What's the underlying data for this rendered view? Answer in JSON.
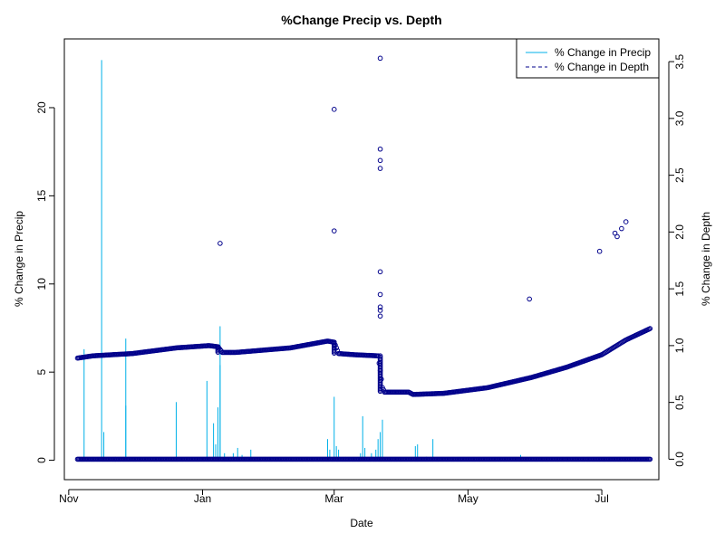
{
  "chart_data": {
    "type": "line",
    "title": "%Change Precip vs. Depth",
    "xlabel": "Date",
    "ylabel_left": "% Change in Precip",
    "ylabel_right": "% Change in Depth",
    "x_ticks": [
      {
        "date": "2019-11-01",
        "label": "Nov"
      },
      {
        "date": "2020-01-01",
        "label": "Jan"
      },
      {
        "date": "2020-03-01",
        "label": "Mar"
      },
      {
        "date": "2020-05-01",
        "label": "May"
      },
      {
        "date": "2020-07-01",
        "label": "Jul"
      }
    ],
    "xlim": [
      "2019-10-30",
      "2020-07-27"
    ],
    "y_left_ticks": [
      "0",
      "5",
      "10",
      "15",
      "20"
    ],
    "y_left_lim": [
      -1.1,
      23.9
    ],
    "y_right_ticks": [
      "0.0",
      "0.5",
      "1.0",
      "1.5",
      "2.0",
      "2.5",
      "3.0",
      "3.5"
    ],
    "y_right_lim": [
      -0.18,
      3.7
    ],
    "legend_position": "top-right",
    "series": [
      {
        "name": "% Change in Precip",
        "style": "vertical lines",
        "color": "#00B0E8",
        "axis": "left",
        "points": [
          {
            "date": "2019-11-08",
            "value": 6.3
          },
          {
            "date": "2019-11-16",
            "value": 22.7
          },
          {
            "date": "2019-11-17",
            "value": 1.6
          },
          {
            "date": "2019-11-27",
            "value": 6.9
          },
          {
            "date": "2019-11-27",
            "value": 3.1
          },
          {
            "date": "2019-12-20",
            "value": 3.3
          },
          {
            "date": "2020-01-03",
            "value": 4.5
          },
          {
            "date": "2020-01-06",
            "value": 2.1
          },
          {
            "date": "2020-01-07",
            "value": 0.9
          },
          {
            "date": "2020-01-08",
            "value": 3.0
          },
          {
            "date": "2020-01-09",
            "value": 7.6
          },
          {
            "date": "2020-01-09",
            "value": 5.4
          },
          {
            "date": "2020-01-11",
            "value": 0.4
          },
          {
            "date": "2020-01-15",
            "value": 0.4
          },
          {
            "date": "2020-01-17",
            "value": 0.7
          },
          {
            "date": "2020-01-19",
            "value": 0.3
          },
          {
            "date": "2020-01-23",
            "value": 0.6
          },
          {
            "date": "2020-02-27",
            "value": 1.2
          },
          {
            "date": "2020-02-28",
            "value": 0.6
          },
          {
            "date": "2020-03-01",
            "value": 3.6
          },
          {
            "date": "2020-03-02",
            "value": 0.8
          },
          {
            "date": "2020-03-03",
            "value": 0.6
          },
          {
            "date": "2020-03-13",
            "value": 0.4
          },
          {
            "date": "2020-03-14",
            "value": 2.5
          },
          {
            "date": "2020-03-15",
            "value": 0.7
          },
          {
            "date": "2020-03-18",
            "value": 0.4
          },
          {
            "date": "2020-03-20",
            "value": 0.6
          },
          {
            "date": "2020-03-21",
            "value": 1.2
          },
          {
            "date": "2020-03-22",
            "value": 1.6
          },
          {
            "date": "2020-03-23",
            "value": 2.3
          },
          {
            "date": "2020-04-07",
            "value": 0.8
          },
          {
            "date": "2020-04-08",
            "value": 0.9
          },
          {
            "date": "2020-04-12",
            "value": 0.2
          },
          {
            "date": "2020-04-15",
            "value": 1.2
          },
          {
            "date": "2020-05-25",
            "value": 0.3
          }
        ]
      },
      {
        "name": "% Change in Depth",
        "style": "open circles",
        "color": "#00008B",
        "axis": "right",
        "baseline_value": 0.0,
        "baseline_range": [
          "2019-11-05",
          "2020-07-23"
        ],
        "trend": [
          {
            "date": "2019-11-05",
            "value": 0.89
          },
          {
            "date": "2019-11-12",
            "value": 0.91
          },
          {
            "date": "2019-11-30",
            "value": 0.93
          },
          {
            "date": "2019-12-20",
            "value": 0.98
          },
          {
            "date": "2020-01-04",
            "value": 1.0
          },
          {
            "date": "2020-01-08",
            "value": 0.99
          },
          {
            "date": "2020-01-10",
            "value": 0.94
          },
          {
            "date": "2020-01-16",
            "value": 0.94
          },
          {
            "date": "2020-02-10",
            "value": 0.98
          },
          {
            "date": "2020-02-27",
            "value": 1.04
          },
          {
            "date": "2020-03-01",
            "value": 1.03
          },
          {
            "date": "2020-03-03",
            "value": 0.93
          },
          {
            "date": "2020-03-10",
            "value": 0.92
          },
          {
            "date": "2020-03-21",
            "value": 0.91
          },
          {
            "date": "2020-03-22",
            "value": 0.78
          },
          {
            "date": "2020-03-23",
            "value": 0.63
          },
          {
            "date": "2020-03-24",
            "value": 0.59
          },
          {
            "date": "2020-04-04",
            "value": 0.59
          },
          {
            "date": "2020-04-06",
            "value": 0.57
          },
          {
            "date": "2020-04-20",
            "value": 0.58
          },
          {
            "date": "2020-05-10",
            "value": 0.63
          },
          {
            "date": "2020-05-30",
            "value": 0.72
          },
          {
            "date": "2020-06-15",
            "value": 0.81
          },
          {
            "date": "2020-07-01",
            "value": 0.92
          },
          {
            "date": "2020-07-12",
            "value": 1.05
          },
          {
            "date": "2020-07-23",
            "value": 1.15
          }
        ],
        "outliers": [
          {
            "date": "2020-01-09",
            "value": 1.9
          },
          {
            "date": "2020-03-01",
            "value": 3.08
          },
          {
            "date": "2020-03-01",
            "value": 2.01
          },
          {
            "date": "2020-03-22",
            "value": 3.53
          },
          {
            "date": "2020-03-22",
            "value": 2.73
          },
          {
            "date": "2020-03-22",
            "value": 2.63
          },
          {
            "date": "2020-03-22",
            "value": 2.56
          },
          {
            "date": "2020-03-22",
            "value": 1.65
          },
          {
            "date": "2020-03-22",
            "value": 1.45
          },
          {
            "date": "2020-03-22",
            "value": 1.34
          },
          {
            "date": "2020-03-22",
            "value": 1.31
          },
          {
            "date": "2020-03-22",
            "value": 1.26
          },
          {
            "date": "2020-05-29",
            "value": 1.41
          },
          {
            "date": "2020-06-30",
            "value": 1.83
          },
          {
            "date": "2020-07-07",
            "value": 1.99
          },
          {
            "date": "2020-07-08",
            "value": 1.96
          },
          {
            "date": "2020-07-10",
            "value": 2.03
          },
          {
            "date": "2020-07-12",
            "value": 2.09
          }
        ]
      }
    ]
  }
}
